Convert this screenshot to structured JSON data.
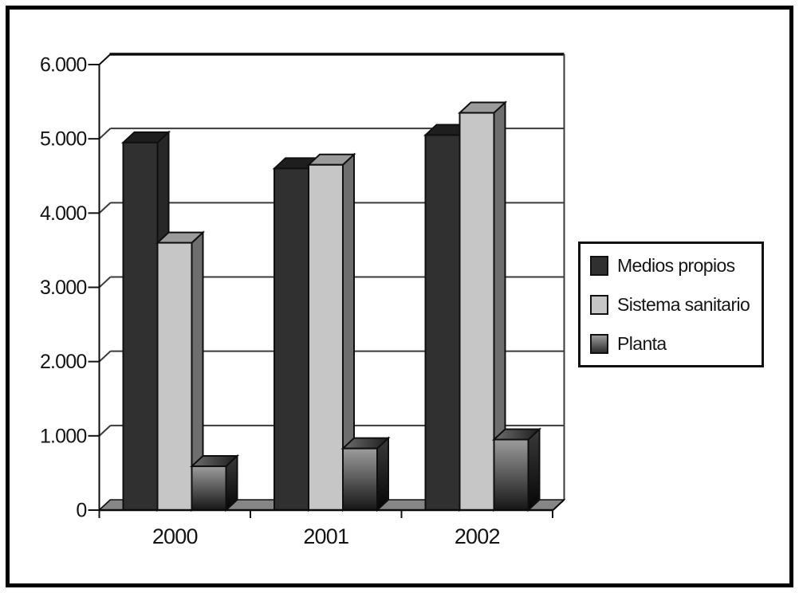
{
  "chart_data": {
    "type": "bar",
    "style": "3d-column",
    "title": "",
    "xlabel": "",
    "ylabel": "",
    "categories": [
      "2000",
      "2001",
      "2002"
    ],
    "series": [
      {
        "name": "Medios propios",
        "values": [
          4950,
          4600,
          5050
        ],
        "color": "#303030"
      },
      {
        "name": "Sistema sanitario",
        "values": [
          3600,
          4650,
          5350
        ],
        "color": "#c6c6c6"
      },
      {
        "name": "Planta",
        "values": [
          590,
          830,
          950
        ],
        "color": "#8a8a8a",
        "gradient": [
          "#9c9c9c",
          "#2e2e2e"
        ]
      }
    ],
    "ylim": [
      0,
      6000
    ],
    "y_tick_labels": [
      "0",
      "1.000",
      "2.000",
      "3.000",
      "4.000",
      "5.000",
      "6.000"
    ],
    "grid": true,
    "legend_position": "right-middle",
    "axis_color": "#0a0a0a",
    "gridline_color": "#3a3a3a",
    "floor_color": "#868686",
    "background_color": "#ffffff",
    "frame_border_color": "#000000"
  }
}
